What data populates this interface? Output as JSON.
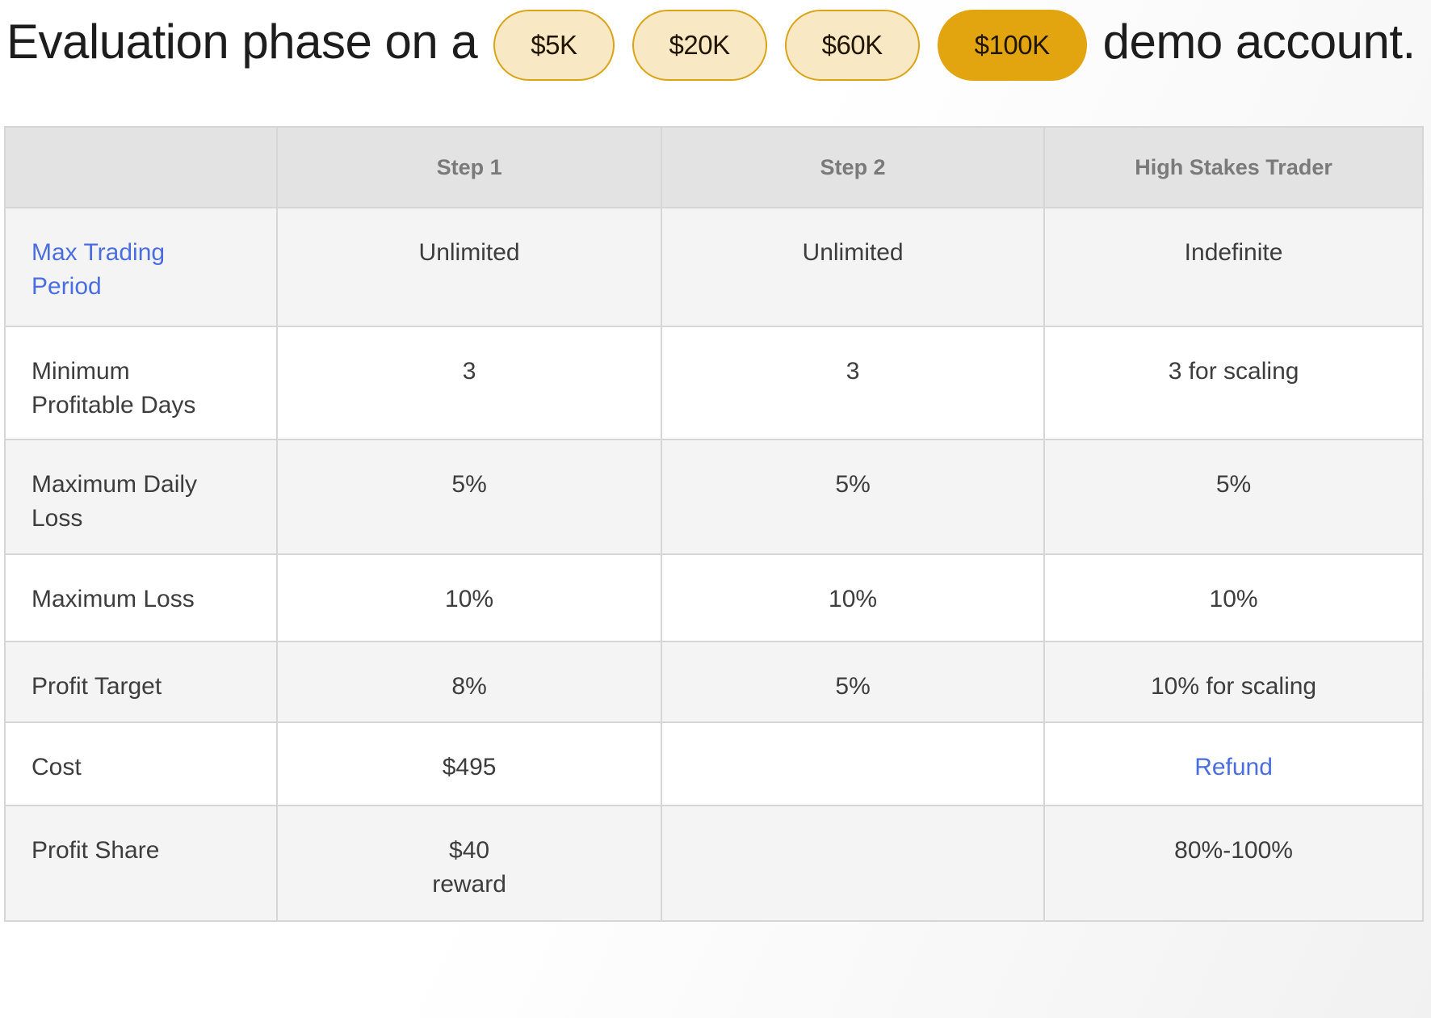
{
  "heading": {
    "before": "Evaluation phase on a",
    "after": "demo account."
  },
  "account_sizes": {
    "options": [
      {
        "label": "$5K",
        "selected": false
      },
      {
        "label": "$20K",
        "selected": false
      },
      {
        "label": "$60K",
        "selected": false
      },
      {
        "label": "$100K",
        "selected": true
      }
    ]
  },
  "colors": {
    "accent_gold": "#e2a50f",
    "pill_unselected_bg": "#f8e8c4",
    "pill_border": "#d9a417",
    "link_blue": "#4a6edf",
    "header_bg": "#e3e3e3",
    "header_text": "#7a7a7a",
    "stripe_row_bg": "#f4f4f4",
    "cell_text": "#3d3d3d"
  },
  "table": {
    "columns": [
      "",
      "Step 1",
      "Step 2",
      "High Stakes Trader"
    ],
    "rows": [
      {
        "label": "Max Trading Period",
        "label_link": true,
        "values": [
          "Unlimited",
          "Unlimited",
          "Indefinite"
        ],
        "value_links": [
          false,
          false,
          false
        ]
      },
      {
        "label": "Minimum Profitable Days",
        "label_link": false,
        "values": [
          "3",
          "3",
          "3 for scaling"
        ],
        "value_links": [
          false,
          false,
          false
        ]
      },
      {
        "label": "Maximum Daily Loss",
        "label_link": false,
        "values": [
          "5%",
          "5%",
          "5%"
        ],
        "value_links": [
          false,
          false,
          false
        ]
      },
      {
        "label": "Maximum Loss",
        "label_link": false,
        "values": [
          "10%",
          "10%",
          "10%"
        ],
        "value_links": [
          false,
          false,
          false
        ]
      },
      {
        "label": "Profit Target",
        "label_link": false,
        "values": [
          "8%",
          "5%",
          "10% for scaling"
        ],
        "value_links": [
          false,
          false,
          false
        ]
      },
      {
        "label": "Cost",
        "label_link": false,
        "values": [
          "$495",
          "",
          "Refund"
        ],
        "value_links": [
          false,
          false,
          true
        ]
      },
      {
        "label": "Profit Share",
        "label_link": false,
        "values": [
          "$40\nreward",
          "",
          "80%-100%"
        ],
        "value_links": [
          false,
          false,
          false
        ]
      }
    ]
  }
}
